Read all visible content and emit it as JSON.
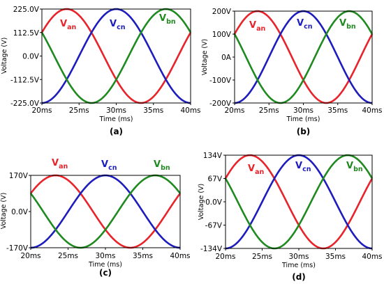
{
  "chart_data": [
    {
      "type": "line",
      "panel_label": "(a)",
      "xlabel": "Time (ms)",
      "ylabel": "Voltage (V)",
      "xlim": [
        20,
        40
      ],
      "ylim": [
        -225,
        225
      ],
      "xticks": [
        "20ms",
        "25ms",
        "30ms",
        "35ms",
        "40ms"
      ],
      "yticks": [
        "225.0V",
        "112.5V",
        "0.0V",
        "-112.5V",
        "-225.0V"
      ],
      "amplitude": 225,
      "frequency_hz": 50,
      "series": [
        {
          "name": "V_an",
          "label_main": "V",
          "label_sub": "an",
          "color": "#e8232a",
          "peak_time_ms": 23.33,
          "x": [
            20,
            23.33,
            28.33,
            33.33,
            38.33,
            40
          ],
          "y": [
            112.5,
            225,
            0,
            -225,
            0,
            112.5
          ]
        },
        {
          "name": "V_cn",
          "label_main": "V",
          "label_sub": "cn",
          "color": "#1d1dbd",
          "peak_time_ms": 30.0,
          "x": [
            20,
            25,
            30,
            35,
            40
          ],
          "y": [
            -225,
            0,
            225,
            0,
            -225
          ]
        },
        {
          "name": "V_bn",
          "label_main": "V",
          "label_sub": "bn",
          "color": "#1f8a1f",
          "peak_time_ms": 36.67,
          "x": [
            20,
            21.67,
            26.67,
            31.67,
            36.67,
            40
          ],
          "y": [
            112.5,
            0,
            -225,
            0,
            225,
            112.5
          ]
        }
      ]
    },
    {
      "type": "line",
      "panel_label": "(b)",
      "xlabel": "Time (ms)",
      "ylabel": "Voltage (V)",
      "xlim": [
        20,
        40
      ],
      "ylim": [
        -200,
        200
      ],
      "xticks": [
        "20ms",
        "25ms",
        "30ms",
        "35ms",
        "40ms"
      ],
      "yticks": [
        "200V",
        "100V",
        "0A",
        "-100V",
        "-200V"
      ],
      "amplitude": 200,
      "frequency_hz": 50,
      "series": [
        {
          "name": "V_an",
          "label_main": "V",
          "label_sub": "an",
          "color": "#e8232a",
          "peak_time_ms": 23.33,
          "x": [
            20,
            23.33,
            28.33,
            33.33,
            38.33,
            40
          ],
          "y": [
            100,
            200,
            0,
            -200,
            0,
            100
          ]
        },
        {
          "name": "V_cn",
          "label_main": "V",
          "label_sub": "cn",
          "color": "#1d1dbd",
          "peak_time_ms": 30.0,
          "x": [
            20,
            25,
            30,
            35,
            40
          ],
          "y": [
            -200,
            0,
            200,
            0,
            -200
          ]
        },
        {
          "name": "V_bn",
          "label_main": "V",
          "label_sub": "bn",
          "color": "#1f8a1f",
          "peak_time_ms": 36.67,
          "x": [
            20,
            21.67,
            26.67,
            31.67,
            36.67,
            40
          ],
          "y": [
            100,
            0,
            -200,
            0,
            200,
            100
          ]
        }
      ]
    },
    {
      "type": "line",
      "panel_label": "(c)",
      "xlabel": "Time (ms)",
      "ylabel": "Voltage (V)",
      "xlim": [
        20,
        40
      ],
      "ylim": [
        -170,
        170
      ],
      "xticks": [
        "20ms",
        "25ms",
        "30ms",
        "35ms",
        "40ms"
      ],
      "yticks": [
        "170V",
        "0.0V",
        "-170V"
      ],
      "amplitude": 170,
      "frequency_hz": 50,
      "series": [
        {
          "name": "V_an",
          "label_main": "V",
          "label_sub": "an",
          "color": "#e8232a",
          "peak_time_ms": 23.33,
          "x": [
            20,
            23.33,
            28.33,
            33.33,
            38.33,
            40
          ],
          "y": [
            85,
            170,
            0,
            -170,
            0,
            85
          ]
        },
        {
          "name": "V_cn",
          "label_main": "V",
          "label_sub": "cn",
          "color": "#1d1dbd",
          "peak_time_ms": 30.0,
          "x": [
            20,
            25,
            30,
            35,
            40
          ],
          "y": [
            -170,
            0,
            170,
            0,
            -170
          ]
        },
        {
          "name": "V_bn",
          "label_main": "V",
          "label_sub": "bn",
          "color": "#1f8a1f",
          "peak_time_ms": 36.67,
          "x": [
            20,
            21.67,
            26.67,
            31.67,
            36.67,
            40
          ],
          "y": [
            85,
            0,
            -170,
            0,
            170,
            85
          ]
        }
      ]
    },
    {
      "type": "line",
      "panel_label": "(d)",
      "xlabel": "Time (ms)",
      "ylabel": "Voltage (V)",
      "xlim": [
        20,
        40
      ],
      "ylim": [
        -134,
        134
      ],
      "xticks": [
        "20ms",
        "25ms",
        "30ms",
        "35ms",
        "40ms"
      ],
      "yticks": [
        "134V",
        "67V",
        "0.0V",
        "-67V",
        "-134V"
      ],
      "amplitude": 134,
      "frequency_hz": 50,
      "series": [
        {
          "name": "V_an",
          "label_main": "V",
          "label_sub": "an",
          "color": "#e8232a",
          "peak_time_ms": 23.33,
          "x": [
            20,
            23.33,
            28.33,
            33.33,
            38.33,
            40
          ],
          "y": [
            67,
            134,
            0,
            -134,
            0,
            67
          ]
        },
        {
          "name": "V_cn",
          "label_main": "V",
          "label_sub": "cn",
          "color": "#1d1dbd",
          "peak_time_ms": 30.0,
          "x": [
            20,
            25,
            30,
            35,
            40
          ],
          "y": [
            -134,
            0,
            134,
            0,
            -134
          ]
        },
        {
          "name": "V_bn",
          "label_main": "V",
          "label_sub": "bn",
          "color": "#1f8a1f",
          "peak_time_ms": 36.67,
          "x": [
            20,
            21.67,
            26.67,
            31.67,
            36.67,
            40
          ],
          "y": [
            67,
            0,
            -134,
            0,
            134,
            67
          ]
        }
      ]
    }
  ]
}
